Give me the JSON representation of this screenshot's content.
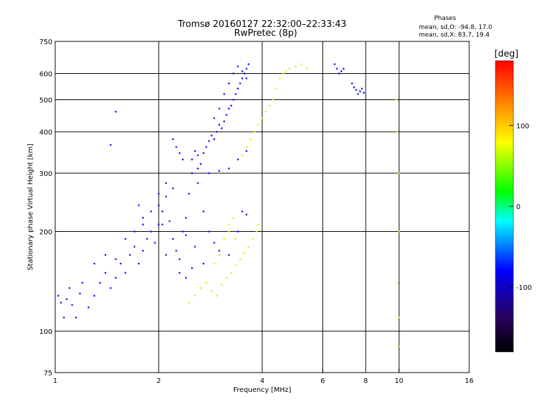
{
  "title": "Tromsø 20160127 22:32:00–22:33:43",
  "subtitle": "RwPretec (8p)",
  "stats": {
    "heading": "Phases",
    "line_o": "mean, sd,O: -94.8, 17.0",
    "line_x": "mean, sd,X:  83.7, 19.4"
  },
  "chart_data": {
    "type": "scatter",
    "xlabel": "Frequency [MHz]",
    "ylabel": "Stationary phase Virtual Height [km]",
    "xscale": "log",
    "yscale": "log",
    "xlim": [
      1,
      16
    ],
    "ylim": [
      75,
      750
    ],
    "x_ticks": [
      1,
      2,
      4,
      6,
      8,
      10,
      16
    ],
    "y_ticks": [
      75,
      100,
      200,
      300,
      400,
      500,
      600,
      750
    ],
    "x_gridlines": [
      2,
      4,
      6,
      8,
      10
    ],
    "y_gridlines": [
      100,
      200,
      300,
      400,
      500,
      600
    ],
    "colorbar": {
      "label": "[deg]",
      "range": [
        -180,
        180
      ],
      "ticks": [
        100,
        0,
        -100
      ],
      "colors": [
        "#000000",
        "#2a0060",
        "#0000ff",
        "#00ffff",
        "#00ff00",
        "#ffff00",
        "#ff8000",
        "#ff0000"
      ]
    },
    "series": [
      {
        "mode": "O",
        "color_hint": "blue (phase ≈ -95°)",
        "points": [
          [
            1.02,
            128
          ],
          [
            1.04,
            122
          ],
          [
            1.06,
            110
          ],
          [
            1.08,
            125
          ],
          [
            1.1,
            135
          ],
          [
            1.12,
            120
          ],
          [
            1.15,
            110
          ],
          [
            1.18,
            130
          ],
          [
            1.2,
            140
          ],
          [
            1.25,
            118
          ],
          [
            1.3,
            128
          ],
          [
            1.35,
            140
          ],
          [
            1.4,
            150
          ],
          [
            1.45,
            135
          ],
          [
            1.5,
            145
          ],
          [
            1.55,
            160
          ],
          [
            1.6,
            150
          ],
          [
            1.65,
            170
          ],
          [
            1.7,
            180
          ],
          [
            1.75,
            160
          ],
          [
            1.8,
            175
          ],
          [
            1.85,
            190
          ],
          [
            1.9,
            200
          ],
          [
            1.95,
            185
          ],
          [
            2.0,
            210
          ],
          [
            2.0,
            240
          ],
          [
            2.05,
            230
          ],
          [
            2.1,
            255
          ],
          [
            2.15,
            215
          ],
          [
            2.2,
            190
          ],
          [
            2.25,
            175
          ],
          [
            2.3,
            165
          ],
          [
            2.35,
            200
          ],
          [
            2.4,
            220
          ],
          [
            2.45,
            260
          ],
          [
            2.5,
            300
          ],
          [
            2.5,
            330
          ],
          [
            2.55,
            350
          ],
          [
            2.6,
            340
          ],
          [
            2.65,
            320
          ],
          [
            2.7,
            345
          ],
          [
            2.75,
            360
          ],
          [
            2.8,
            375
          ],
          [
            2.85,
            390
          ],
          [
            2.9,
            380
          ],
          [
            2.95,
            400
          ],
          [
            3.0,
            420
          ],
          [
            3.05,
            410
          ],
          [
            3.1,
            430
          ],
          [
            3.15,
            450
          ],
          [
            3.2,
            470
          ],
          [
            3.25,
            480
          ],
          [
            3.3,
            500
          ],
          [
            3.35,
            520
          ],
          [
            3.4,
            540
          ],
          [
            3.45,
            560
          ],
          [
            3.5,
            580
          ],
          [
            3.55,
            600
          ],
          [
            3.6,
            620
          ],
          [
            3.65,
            640
          ],
          [
            2.2,
            380
          ],
          [
            2.25,
            360
          ],
          [
            2.3,
            345
          ],
          [
            2.35,
            330
          ],
          [
            2.6,
            310
          ],
          [
            2.8,
            300
          ],
          [
            3.0,
            305
          ],
          [
            3.2,
            310
          ],
          [
            3.4,
            330
          ],
          [
            3.6,
            350
          ],
          [
            2.9,
            440
          ],
          [
            3.0,
            470
          ],
          [
            3.1,
            520
          ],
          [
            3.2,
            560
          ],
          [
            3.3,
            600
          ],
          [
            3.4,
            630
          ],
          [
            3.5,
            610
          ],
          [
            3.6,
            580
          ],
          [
            1.3,
            160
          ],
          [
            1.4,
            170
          ],
          [
            1.5,
            165
          ],
          [
            1.6,
            190
          ],
          [
            1.7,
            200
          ],
          [
            1.8,
            210
          ],
          [
            1.9,
            230
          ],
          [
            2.0,
            260
          ],
          [
            1.75,
            240
          ],
          [
            1.8,
            220
          ],
          [
            2.1,
            280
          ],
          [
            2.2,
            270
          ],
          [
            2.6,
            280
          ],
          [
            2.7,
            230
          ],
          [
            2.8,
            200
          ],
          [
            2.9,
            185
          ],
          [
            3.0,
            175
          ],
          [
            3.2,
            170
          ],
          [
            3.4,
            200
          ],
          [
            3.5,
            230
          ],
          [
            3.6,
            225
          ],
          [
            1.5,
            460
          ],
          [
            1.45,
            365
          ],
          [
            2.05,
            210
          ],
          [
            2.1,
            170
          ],
          [
            2.3,
            150
          ],
          [
            2.4,
            145
          ],
          [
            2.5,
            155
          ],
          [
            2.7,
            160
          ],
          [
            2.4,
            195
          ],
          [
            2.55,
            180
          ],
          [
            6.5,
            640
          ],
          [
            6.6,
            620
          ],
          [
            6.7,
            600
          ],
          [
            6.8,
            610
          ],
          [
            6.9,
            620
          ],
          [
            7.5,
            535
          ],
          [
            7.6,
            520
          ],
          [
            7.7,
            530
          ],
          [
            7.8,
            540
          ],
          [
            7.9,
            525
          ],
          [
            7.3,
            560
          ],
          [
            7.4,
            545
          ]
        ]
      },
      {
        "mode": "X",
        "color_hint": "yellow (phase ≈ 84°)",
        "points": [
          [
            2.45,
            122
          ],
          [
            2.55,
            128
          ],
          [
            2.65,
            135
          ],
          [
            2.75,
            140
          ],
          [
            2.85,
            132
          ],
          [
            2.95,
            128
          ],
          [
            3.05,
            138
          ],
          [
            3.15,
            145
          ],
          [
            3.25,
            150
          ],
          [
            3.35,
            158
          ],
          [
            3.45,
            165
          ],
          [
            3.55,
            172
          ],
          [
            3.65,
            180
          ],
          [
            3.75,
            190
          ],
          [
            3.85,
            200
          ],
          [
            3.9,
            210
          ],
          [
            2.9,
            160
          ],
          [
            3.0,
            170
          ],
          [
            3.1,
            190
          ],
          [
            3.2,
            210
          ],
          [
            3.3,
            220
          ],
          [
            3.2,
            200
          ],
          [
            3.35,
            190
          ],
          [
            3.5,
            340
          ],
          [
            3.6,
            360
          ],
          [
            3.7,
            380
          ],
          [
            3.8,
            400
          ],
          [
            3.9,
            420
          ],
          [
            4.0,
            440
          ],
          [
            4.1,
            460
          ],
          [
            4.2,
            480
          ],
          [
            4.3,
            500
          ],
          [
            4.4,
            540
          ],
          [
            4.5,
            580
          ],
          [
            4.6,
            600
          ],
          [
            4.7,
            610
          ],
          [
            4.8,
            620
          ],
          [
            5.0,
            630
          ],
          [
            5.2,
            640
          ],
          [
            5.4,
            620
          ],
          [
            9.8,
            500
          ],
          [
            9.9,
            400
          ],
          [
            10.0,
            300
          ],
          [
            10.0,
            200
          ],
          [
            9.9,
            140
          ],
          [
            10.0,
            110
          ],
          [
            9.95,
            90
          ]
        ]
      }
    ]
  }
}
